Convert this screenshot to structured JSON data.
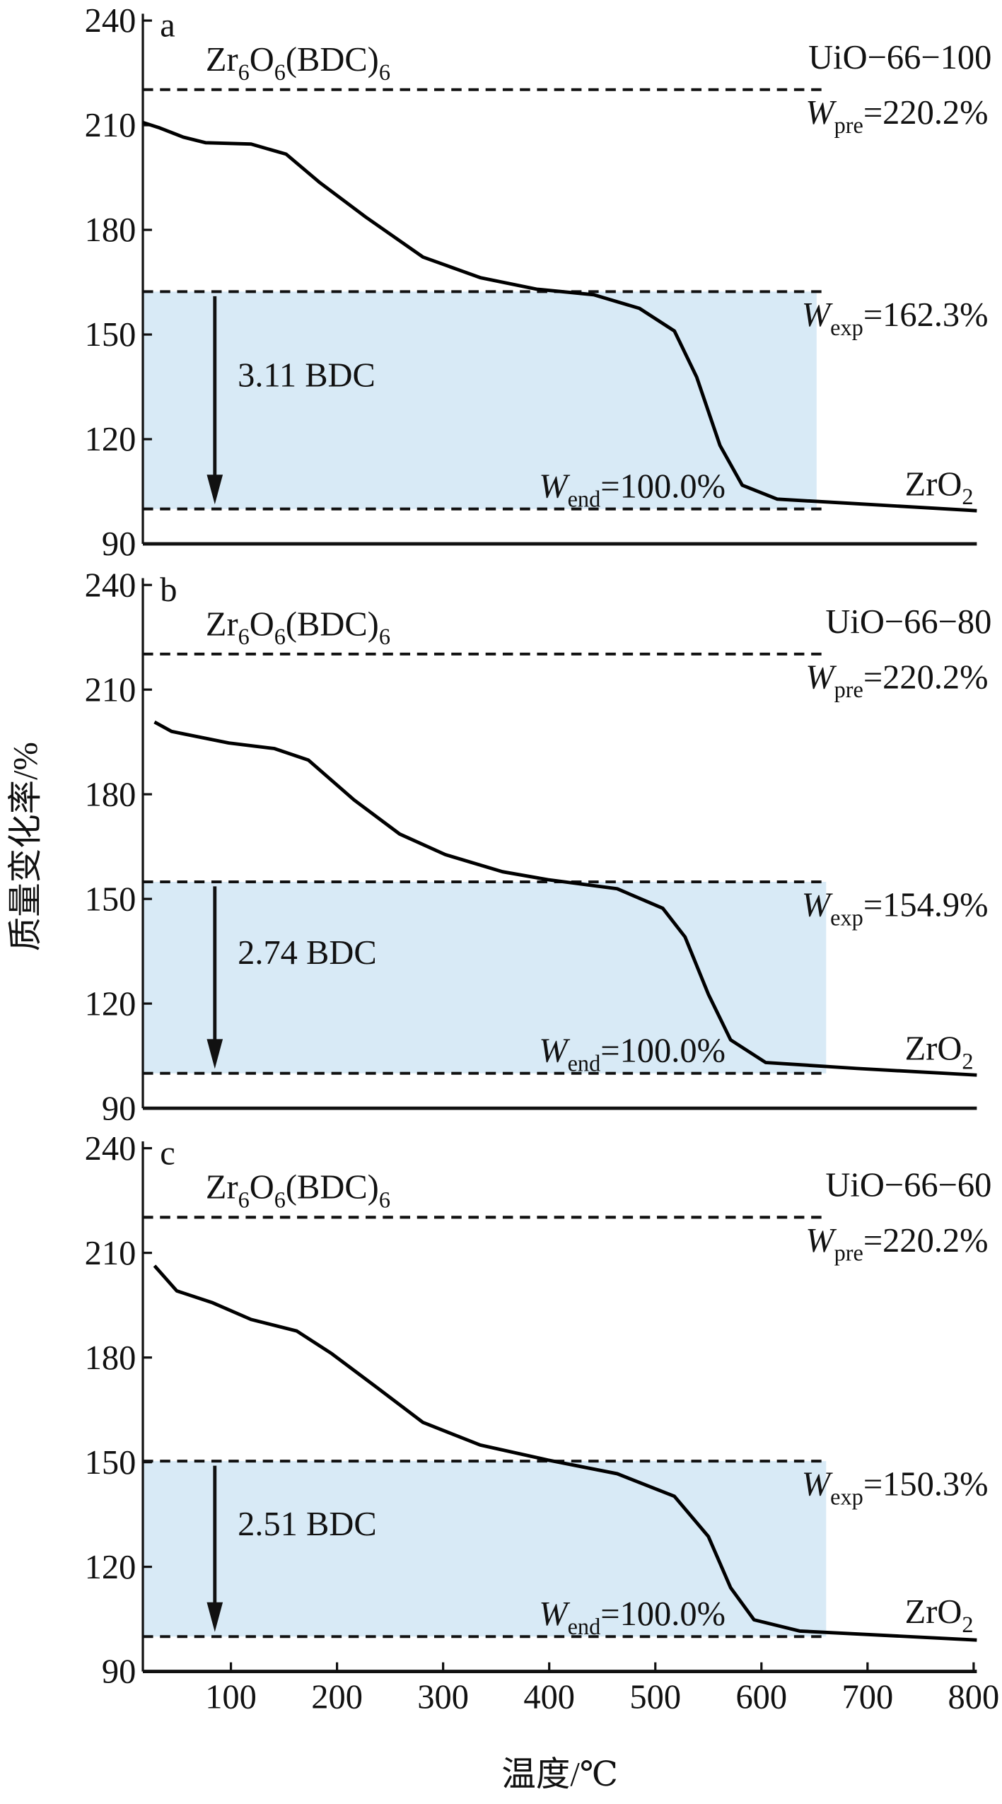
{
  "chart_data": [
    {
      "type": "line",
      "panel": "a",
      "sample": "UiO−66−100",
      "y_label": "质量变化率/%",
      "formula": [
        "Zr",
        "6",
        "O",
        "6",
        "(BDC)",
        "6"
      ],
      "product": [
        "ZrO",
        "2"
      ],
      "bdc_label": "3.11 BDC",
      "xlim": [
        17,
        803
      ],
      "ylim": [
        90,
        240
      ],
      "yticks": [
        90,
        120,
        150,
        180,
        210,
        240
      ],
      "ref_lines": [
        {
          "value": 220.2,
          "label": [
            "W",
            "pre",
            "=220.2%"
          ]
        },
        {
          "value": 162.3,
          "label": [
            "W",
            "exp",
            "=162.3%"
          ]
        },
        {
          "value": 100.0,
          "label": [
            "W",
            "end",
            "=100.0%"
          ]
        }
      ],
      "shade_x_end": 652,
      "color": "#000000",
      "shade_color": "#d8eaf6",
      "x": [
        17,
        33,
        55,
        76,
        119,
        152,
        184,
        227,
        281,
        335,
        388,
        442,
        485,
        518,
        539,
        561,
        582,
        615,
        690,
        803
      ],
      "values": [
        210.8,
        209.2,
        206.6,
        205,
        204.6,
        201.7,
        193.5,
        183.7,
        172.2,
        166.3,
        163,
        161.4,
        157.5,
        151,
        137.8,
        118.2,
        106.8,
        102.8,
        101.5,
        99.5
      ]
    },
    {
      "type": "line",
      "panel": "b",
      "sample": "UiO−66−80",
      "formula": [
        "Zr",
        "6",
        "O",
        "6",
        "(BDC)",
        "6"
      ],
      "product": [
        "ZrO",
        "2"
      ],
      "bdc_label": "2.74 BDC",
      "xlim": [
        17,
        803
      ],
      "ylim": [
        90,
        240
      ],
      "yticks": [
        90,
        120,
        150,
        180,
        210,
        240
      ],
      "ref_lines": [
        {
          "value": 220.2,
          "label": [
            "W",
            "pre",
            "=220.2%"
          ]
        },
        {
          "value": 154.9,
          "label": [
            "W",
            "exp",
            "=154.9%"
          ]
        },
        {
          "value": 100.0,
          "label": [
            "W",
            "end",
            "=100.0%"
          ]
        }
      ],
      "shade_x_end": 661,
      "color": "#000000",
      "shade_color": "#d8eaf6",
      "x": [
        28,
        44,
        98,
        141,
        173,
        216,
        259,
        302,
        356,
        399,
        464,
        507,
        528,
        550,
        571,
        604,
        690,
        803
      ],
      "values": [
        200.7,
        198,
        194.7,
        193.1,
        189.8,
        178.4,
        168.6,
        162.7,
        157.8,
        155.5,
        152.9,
        147.3,
        139.1,
        122.7,
        109.6,
        103.1,
        101.4,
        99.5
      ]
    },
    {
      "type": "line",
      "panel": "c",
      "sample": "UiO−66−60",
      "x_label": "温度/℃",
      "formula": [
        "Zr",
        "6",
        "O",
        "6",
        "(BDC)",
        "6"
      ],
      "product": [
        "ZrO",
        "2"
      ],
      "bdc_label": "2.51 BDC",
      "xlim": [
        17,
        803
      ],
      "ylim": [
        90,
        240
      ],
      "yticks": [
        90,
        120,
        150,
        180,
        210,
        240
      ],
      "xticks": [
        100,
        200,
        300,
        400,
        500,
        600,
        700,
        800
      ],
      "ref_lines": [
        {
          "value": 220.2,
          "label": [
            "W",
            "pre",
            "=220.2%"
          ]
        },
        {
          "value": 150.3,
          "label": [
            "W",
            "exp",
            "=150.3%"
          ]
        },
        {
          "value": 100.0,
          "label": [
            "W",
            "end",
            "=100.0%"
          ]
        }
      ],
      "shade_x_end": 661,
      "color": "#000000",
      "shade_color": "#d8eaf6",
      "x": [
        28,
        49,
        82,
        119,
        162,
        195,
        238,
        281,
        335,
        399,
        464,
        518,
        550,
        571,
        593,
        636,
        803
      ],
      "values": [
        206.3,
        199.1,
        195.8,
        190.9,
        187.6,
        181.1,
        171.3,
        161.4,
        154.9,
        150.6,
        146.7,
        140.2,
        128.7,
        114,
        104.8,
        101.6,
        99
      ]
    }
  ]
}
